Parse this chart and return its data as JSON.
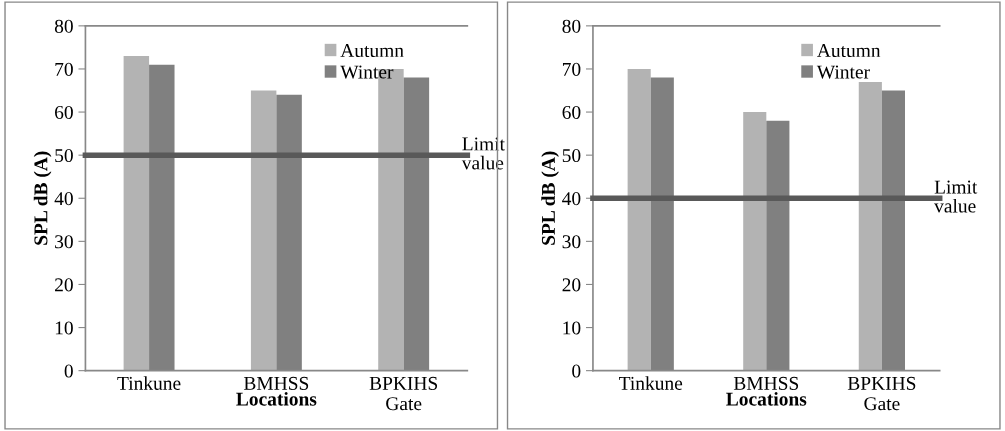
{
  "chart_data": [
    {
      "type": "bar",
      "xlabel": "Locations",
      "ylabel": "SPL dB (A)",
      "categories": [
        "Tinkune",
        "BMHSS",
        "BPKIHS Gate"
      ],
      "series": [
        {
          "name": "Autumn",
          "color": "#b3b3b3",
          "values": [
            73,
            65,
            70
          ]
        },
        {
          "name": "Winter",
          "color": "#808080",
          "values": [
            71,
            64,
            68
          ]
        }
      ],
      "ylim": [
        0,
        80
      ],
      "yticks": [
        0,
        10,
        20,
        30,
        40,
        50,
        60,
        70,
        80
      ],
      "grid": false,
      "legend": "top right",
      "ref_lines": [
        {
          "axis": "y",
          "value": 50,
          "label": "Limit value",
          "color": "#595959"
        }
      ]
    },
    {
      "type": "bar",
      "xlabel": "Locations",
      "ylabel": "SPL dB (A)",
      "categories": [
        "Tinkune",
        "BMHSS",
        "BPKIHS Gate"
      ],
      "series": [
        {
          "name": "Autumn",
          "color": "#b3b3b3",
          "values": [
            70,
            60,
            67
          ]
        },
        {
          "name": "Winter",
          "color": "#808080",
          "values": [
            68,
            58,
            65
          ]
        }
      ],
      "ylim": [
        0,
        80
      ],
      "yticks": [
        0,
        10,
        20,
        30,
        40,
        50,
        60,
        70,
        80
      ],
      "grid": false,
      "legend": "top right",
      "ref_lines": [
        {
          "axis": "y",
          "value": 40,
          "label": "Limit value",
          "color": "#595959"
        }
      ]
    }
  ]
}
